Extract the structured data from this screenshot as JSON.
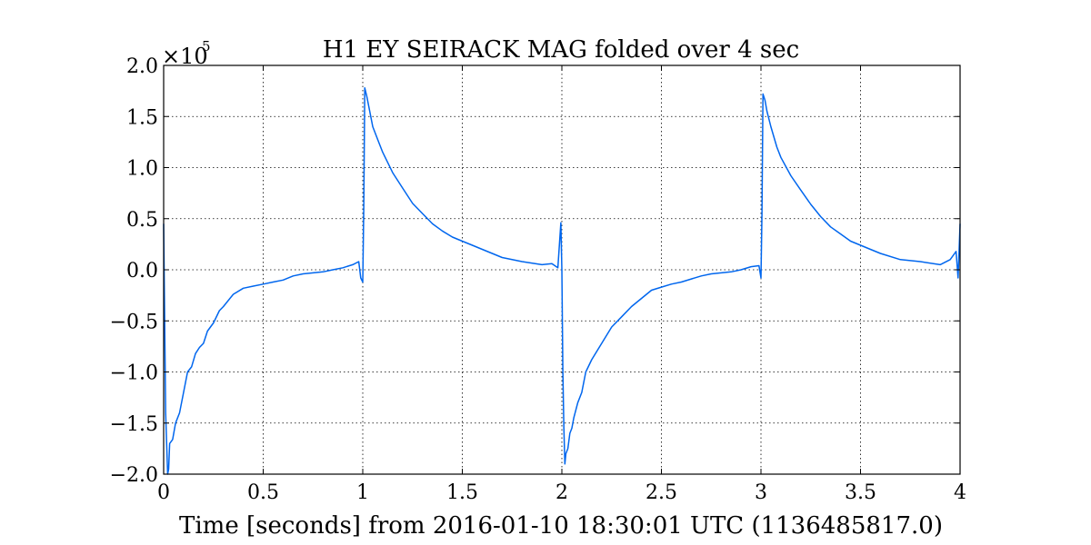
{
  "chart_data": {
    "type": "line",
    "title": "H1 EY SEIRACK MAG folded over 4 sec",
    "xlabel": "Time [seconds] from 2016-01-10 18:30:01 UTC (1136485817.0)",
    "ylabel": "",
    "y_multiplier_base": "×10",
    "y_multiplier_exp": "5",
    "xlim": [
      0,
      4
    ],
    "ylim": [
      -2.0,
      2.0
    ],
    "grid": true,
    "x_ticks": [
      {
        "value": 0,
        "label": "0"
      },
      {
        "value": 0.5,
        "label": "0.5"
      },
      {
        "value": 1,
        "label": "1"
      },
      {
        "value": 1.5,
        "label": "1.5"
      },
      {
        "value": 2,
        "label": "2"
      },
      {
        "value": 2.5,
        "label": "2.5"
      },
      {
        "value": 3,
        "label": "3"
      },
      {
        "value": 3.5,
        "label": "3.5"
      },
      {
        "value": 4,
        "label": "4"
      }
    ],
    "y_ticks": [
      {
        "value": -2.0,
        "label": "−2.0"
      },
      {
        "value": -1.5,
        "label": "−1.5"
      },
      {
        "value": -1.0,
        "label": "−1.0"
      },
      {
        "value": -0.5,
        "label": "−0.5"
      },
      {
        "value": 0.0,
        "label": "0.0"
      },
      {
        "value": 0.5,
        "label": "0.5"
      },
      {
        "value": 1.0,
        "label": "1.0"
      },
      {
        "value": 1.5,
        "label": "1.5"
      },
      {
        "value": 2.0,
        "label": "2.0"
      }
    ],
    "series": [
      {
        "color": "#0066ee",
        "x": [
          0.0,
          0.01,
          0.02,
          0.025,
          0.03,
          0.045,
          0.06,
          0.08,
          0.1,
          0.12,
          0.14,
          0.16,
          0.18,
          0.2,
          0.22,
          0.25,
          0.28,
          0.3,
          0.35,
          0.4,
          0.45,
          0.5,
          0.55,
          0.6,
          0.65,
          0.7,
          0.75,
          0.8,
          0.85,
          0.9,
          0.95,
          0.98,
          0.99,
          1.0,
          1.005,
          1.01,
          1.02,
          1.03,
          1.05,
          1.08,
          1.1,
          1.15,
          1.2,
          1.25,
          1.3,
          1.35,
          1.4,
          1.45,
          1.5,
          1.55,
          1.6,
          1.7,
          1.8,
          1.9,
          1.95,
          1.98,
          1.995,
          2.0,
          2.005,
          2.01,
          2.015,
          2.02,
          2.03,
          2.04,
          2.05,
          2.06,
          2.08,
          2.1,
          2.12,
          2.15,
          2.2,
          2.25,
          2.3,
          2.35,
          2.4,
          2.45,
          2.5,
          2.55,
          2.6,
          2.65,
          2.7,
          2.75,
          2.8,
          2.85,
          2.9,
          2.95,
          2.99,
          3.0,
          3.005,
          3.01,
          3.02,
          3.03,
          3.05,
          3.08,
          3.1,
          3.15,
          3.2,
          3.25,
          3.3,
          3.35,
          3.4,
          3.45,
          3.5,
          3.55,
          3.6,
          3.7,
          3.8,
          3.9,
          3.95,
          3.98,
          3.99,
          4.0
        ],
        "y": [
          0.45,
          -1.4,
          -2.0,
          -1.95,
          -1.7,
          -1.66,
          -1.5,
          -1.4,
          -1.2,
          -1.0,
          -0.95,
          -0.82,
          -0.76,
          -0.72,
          -0.6,
          -0.52,
          -0.4,
          -0.36,
          -0.24,
          -0.18,
          -0.16,
          -0.14,
          -0.12,
          -0.1,
          -0.06,
          -0.04,
          -0.03,
          -0.02,
          0.0,
          0.02,
          0.05,
          0.08,
          -0.08,
          -0.12,
          0.6,
          1.78,
          1.7,
          1.6,
          1.4,
          1.25,
          1.15,
          0.95,
          0.8,
          0.65,
          0.55,
          0.45,
          0.38,
          0.32,
          0.28,
          0.24,
          0.2,
          0.12,
          0.08,
          0.05,
          0.06,
          0.02,
          0.46,
          0.0,
          -1.0,
          -1.55,
          -1.9,
          -1.8,
          -1.75,
          -1.6,
          -1.55,
          -1.45,
          -1.3,
          -1.2,
          -1.0,
          -0.88,
          -0.72,
          -0.56,
          -0.46,
          -0.36,
          -0.28,
          -0.2,
          -0.17,
          -0.14,
          -0.12,
          -0.09,
          -0.06,
          -0.04,
          -0.03,
          -0.02,
          0.0,
          0.03,
          0.04,
          -0.08,
          0.55,
          1.72,
          1.66,
          1.55,
          1.4,
          1.2,
          1.1,
          0.92,
          0.78,
          0.64,
          0.52,
          0.42,
          0.35,
          0.28,
          0.24,
          0.2,
          0.16,
          0.1,
          0.08,
          0.05,
          0.1,
          0.18,
          -0.08,
          0.45
        ]
      }
    ]
  }
}
